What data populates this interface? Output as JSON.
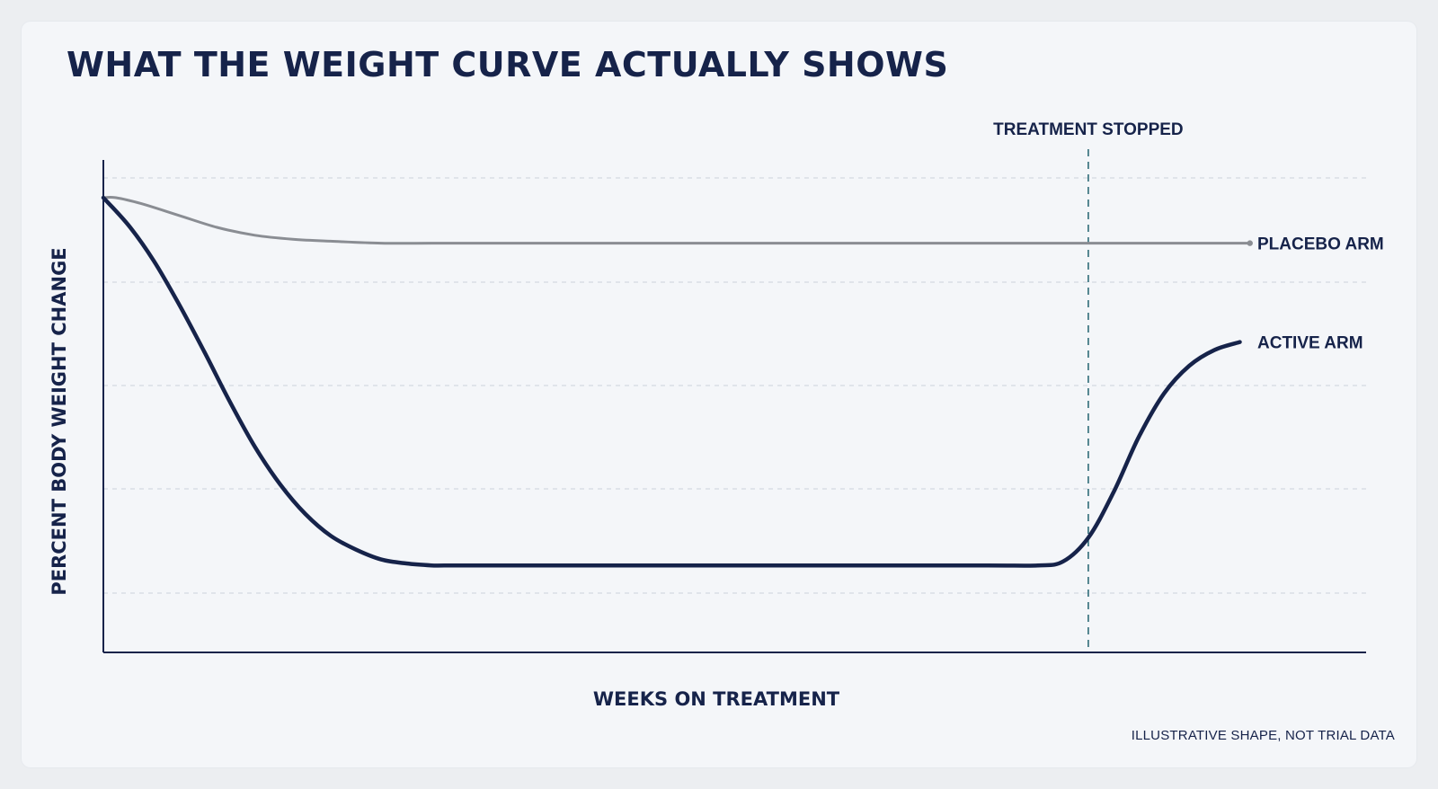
{
  "title": "WHAT THE WEIGHT CURVE ACTUALLY SHOWS",
  "footnote": "ILLUSTRATIVE SHAPE, NOT TRIAL DATA",
  "colors": {
    "active": "#16234a",
    "placebo": "#8a8d93",
    "marker": "#2e6b78",
    "grid": "#d4d9e2",
    "axis": "#16234a"
  },
  "chart_data": {
    "type": "line",
    "title": "WHAT THE WEIGHT CURVE ACTUALLY SHOWS",
    "xlabel": "WEEKS ON TREATMENT",
    "ylabel": "PERCENT BODY WEIGHT CHANGE",
    "grid": "horizontal dashed",
    "tick_labels": "none shown",
    "xlim": [
      0,
      100
    ],
    "ylim": [
      -24,
      0
    ],
    "annotations": [
      {
        "text": "TREATMENT STOPPED",
        "x": 78,
        "style": "dashed vertical line"
      }
    ],
    "series": [
      {
        "name": "PLACEBO ARM",
        "color": "#8a8d93",
        "x": [
          0,
          1,
          3,
          6,
          9,
          12,
          15,
          18,
          22,
          26,
          30,
          40,
          50,
          60,
          70,
          78,
          85,
          90,
          90.8
        ],
        "y": [
          -1.0,
          -1.0,
          -1.3,
          -1.9,
          -2.5,
          -2.9,
          -3.1,
          -3.2,
          -3.3,
          -3.3,
          -3.3,
          -3.3,
          -3.3,
          -3.3,
          -3.3,
          -3.3,
          -3.3,
          -3.3,
          -3.3
        ]
      },
      {
        "name": "ACTIVE ARM",
        "color": "#16234a",
        "x": [
          0,
          2,
          4,
          6,
          8,
          10,
          12,
          14,
          16,
          18,
          20,
          22,
          24,
          26,
          27,
          30,
          40,
          50,
          60,
          70,
          74,
          76,
          78,
          80,
          82,
          84,
          86,
          88,
          90
        ],
        "y": [
          -1.0,
          -2.4,
          -4.2,
          -6.4,
          -8.8,
          -11.3,
          -13.6,
          -15.5,
          -17.0,
          -18.1,
          -18.8,
          -19.3,
          -19.5,
          -19.6,
          -19.6,
          -19.6,
          -19.6,
          -19.6,
          -19.6,
          -19.6,
          -19.6,
          -19.4,
          -18.2,
          -15.9,
          -13.1,
          -10.9,
          -9.5,
          -8.7,
          -8.3
        ]
      }
    ]
  }
}
